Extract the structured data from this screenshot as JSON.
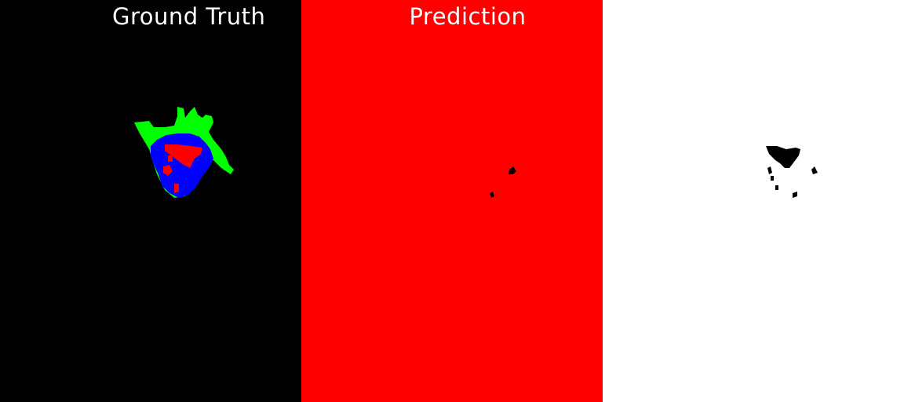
{
  "panels": [
    {
      "key": "ground_truth",
      "title": "Ground Truth",
      "background": "#000000"
    },
    {
      "key": "prediction",
      "title": "Prediction",
      "background": "#ff0000"
    },
    {
      "key": "third",
      "title": "",
      "background": "#ffffff"
    }
  ],
  "colors": {
    "label_green": "#00ff00",
    "label_blue": "#0000ff",
    "label_red": "#ff0000",
    "mask_black": "#000000",
    "title_text": "#ffffff"
  }
}
